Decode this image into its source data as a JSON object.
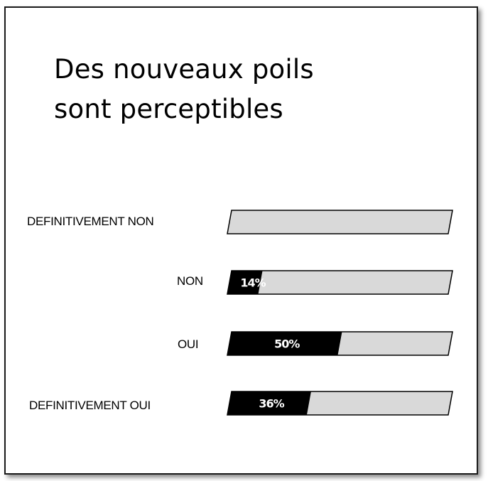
{
  "title_lines": [
    "Des nouveaux poils",
    "sont perceptibles"
  ],
  "colors": {
    "fill": "#000000",
    "track": "#d9d9d9",
    "outline": "#000000",
    "value_text": "#ffffff"
  },
  "chart_data": {
    "type": "bar",
    "orientation": "horizontal",
    "title": "Des nouveaux poils sont perceptibles",
    "categories": [
      "DEFINITIVEMENT NON",
      "NON",
      "OUI",
      "DEFINITIVEMENT OUI"
    ],
    "values": [
      0,
      14,
      50,
      36
    ],
    "value_labels": [
      "",
      "14%",
      "50%",
      "36%"
    ],
    "unit": "%",
    "xlim": [
      0,
      100
    ],
    "grid": false,
    "legend": "none"
  }
}
